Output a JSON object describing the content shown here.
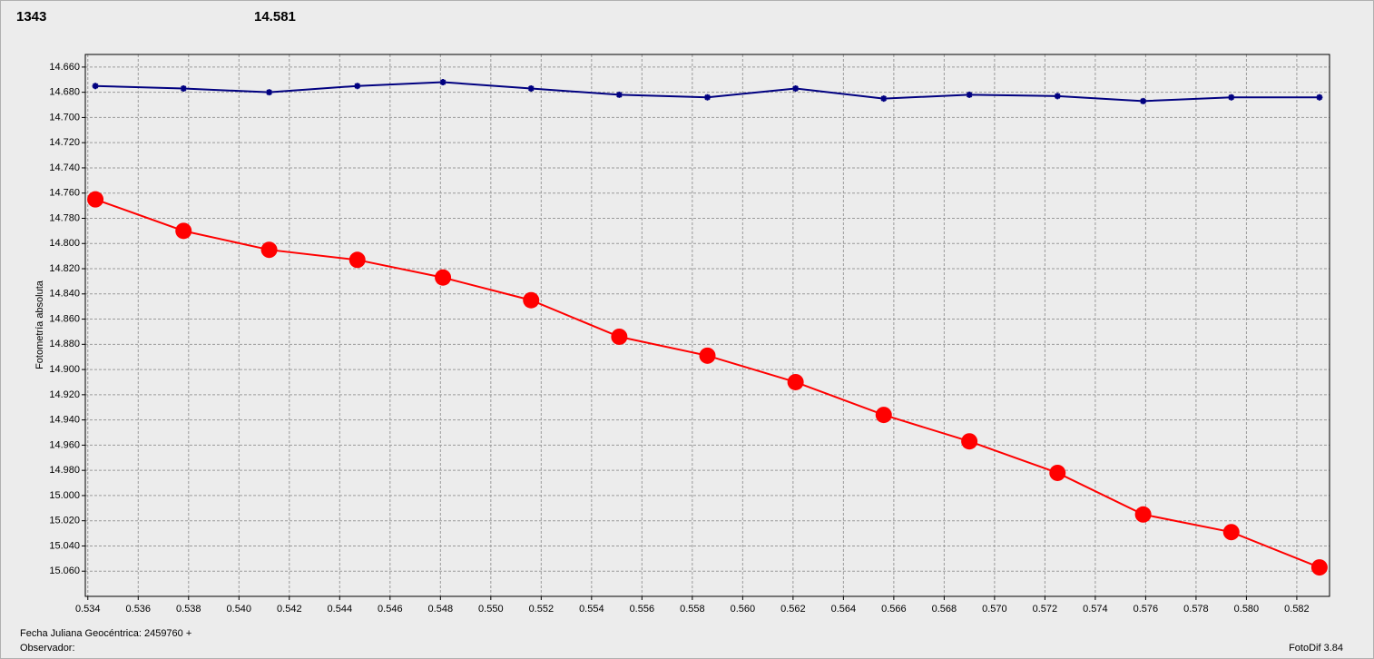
{
  "chart_data": {
    "type": "line",
    "header_labels": [
      {
        "text": "1343",
        "color": "#ff0000"
      },
      {
        "text": "14.581",
        "color": "#000080"
      }
    ],
    "ylabel": "Fotometría absoluta",
    "footer": [
      "Fecha Juliana Geocéntrica: 2459760 +",
      "Observador:"
    ],
    "version": "FotoDif 3.84",
    "x": [
      0.5343,
      0.5378,
      0.5412,
      0.5447,
      0.5481,
      0.5516,
      0.5551,
      0.5586,
      0.5621,
      0.5656,
      0.569,
      0.5725,
      0.5759,
      0.5794,
      0.5829
    ],
    "series": [
      {
        "color": "#ff0000",
        "marker": "large-circle",
        "values": [
          14.765,
          14.79,
          14.805,
          14.813,
          14.827,
          14.845,
          14.874,
          14.889,
          14.91,
          14.936,
          14.957,
          14.982,
          15.015,
          15.029,
          15.057
        ]
      },
      {
        "color": "#000080",
        "marker": "small-star",
        "values": [
          14.675,
          14.677,
          14.68,
          14.675,
          14.672,
          14.677,
          14.682,
          14.684,
          14.677,
          14.685,
          14.682,
          14.683,
          14.687,
          14.684,
          14.684
        ]
      }
    ],
    "xlim": [
      0.5339,
      0.5833
    ],
    "ylim": [
      15.08,
      14.65
    ],
    "xticks": [
      0.534,
      0.536,
      0.538,
      {
        "value": 0.54,
        "label": "0.540"
      },
      0.542,
      0.544,
      0.546,
      0.548,
      {
        "value": 0.55,
        "label": "0.550"
      },
      0.552,
      0.554,
      0.556,
      0.558,
      {
        "value": 0.56,
        "label": "0.560"
      },
      0.562,
      0.564,
      0.566,
      0.568,
      {
        "value": 0.57,
        "label": "0.570"
      },
      0.572,
      0.574,
      0.576,
      0.578,
      {
        "value": 0.58,
        "label": "0.580"
      },
      0.582
    ],
    "yticks": [
      {
        "value": 14.66,
        "label": "14.660"
      },
      {
        "value": 14.68,
        "label": "14.680"
      },
      {
        "value": 14.7,
        "label": "14.700"
      },
      {
        "value": 14.72,
        "label": "14.720"
      },
      {
        "value": 14.74,
        "label": "14.740"
      },
      {
        "value": 14.76,
        "label": "14.760"
      },
      {
        "value": 14.78,
        "label": "14.780"
      },
      {
        "value": 14.8,
        "label": "14.800"
      },
      {
        "value": 14.82,
        "label": "14.820"
      },
      {
        "value": 14.84,
        "label": "14.840"
      },
      {
        "value": 14.86,
        "label": "14.860"
      },
      {
        "value": 14.88,
        "label": "14.880"
      },
      {
        "value": 14.9,
        "label": "14.900"
      },
      {
        "value": 14.92,
        "label": "14.920"
      },
      {
        "value": 14.94,
        "label": "14.940"
      },
      {
        "value": 14.96,
        "label": "14.960"
      },
      {
        "value": 14.98,
        "label": "14.980"
      },
      {
        "value": 15.0,
        "label": "15.000"
      },
      {
        "value": 15.02,
        "label": "15.020"
      },
      {
        "value": 15.04,
        "label": "15.040"
      },
      {
        "value": 15.06,
        "label": "15.060"
      }
    ],
    "grid": true
  }
}
